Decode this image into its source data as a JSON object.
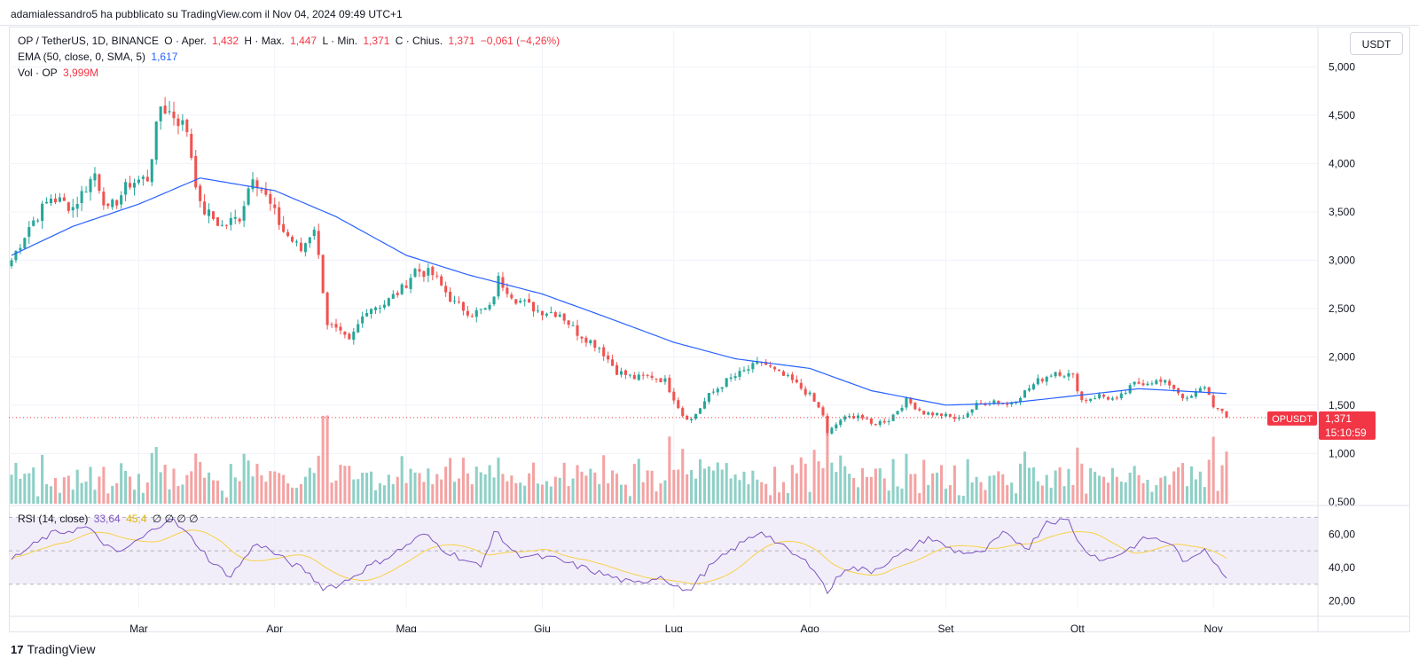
{
  "header": {
    "attribution": "adamialessandro5 ha pubblicato su TradingView.com il Nov 04, 2024 09:49 UTC+1"
  },
  "legend": {
    "symbol": "OP / TetherUS, 1D, BINANCE",
    "open_label": "O · Aper.",
    "open_value": "1,432",
    "high_label": "H · Max.",
    "high_value": "1,447",
    "low_label": "L · Min.",
    "low_value": "1,371",
    "close_label": "C · Chius.",
    "close_value": "1,371",
    "change": "−0,061 (−4,26%)",
    "ema_label": "EMA (50, close, 0, SMA, 5)",
    "ema_value": "1,617",
    "vol_label": "Vol · OP",
    "vol_value": "3,999M",
    "rsi_label": "RSI (14, close)",
    "rsi_value": "33,64",
    "rsi_ma_value": "45,4",
    "rsi_extra": "∅ ∅ ∅ ∅"
  },
  "currency_button": "USDT",
  "price_tag": {
    "symbol": "OPUSDT",
    "price": "1,371",
    "countdown": "15:10:59"
  },
  "footer": {
    "brand": "TradingView",
    "logo": "17"
  },
  "colors": {
    "up": "#26a69a",
    "down": "#ef5350",
    "up_vol": "#8ed0c7",
    "down_vol": "#f4a3a3",
    "ema": "#2962ff",
    "rsi": "#7e57c2",
    "rsi_ma": "#f7d147",
    "rsi_band": "#ede7f6",
    "last_price": "#f23645"
  },
  "chart_data": {
    "type": "candlestick",
    "symbol": "OP / TetherUS",
    "interval": "1D",
    "exchange": "BINANCE",
    "y_ticks": [
      "5,000",
      "4,500",
      "4,000",
      "3,500",
      "3,000",
      "2,500",
      "2,000",
      "1,500",
      "1,000",
      "0,500"
    ],
    "y_tick_values": [
      5.0,
      4.5,
      4.0,
      3.5,
      3.0,
      2.5,
      2.0,
      1.5,
      1.0,
      0.5
    ],
    "ylim": [
      0.48,
      5.38
    ],
    "rsi_ticks": [
      "60,00",
      "40,00",
      "20,00"
    ],
    "rsi_tick_values": [
      60,
      40,
      20
    ],
    "rsi_band": [
      30,
      70
    ],
    "rsi_mid": 50,
    "x_labels": [
      {
        "label": "Mar",
        "date": "2024-03-01"
      },
      {
        "label": "Apr",
        "date": "2024-04-01"
      },
      {
        "label": "Mag",
        "date": "2024-05-01"
      },
      {
        "label": "Giu",
        "date": "2024-06-01"
      },
      {
        "label": "Lug",
        "date": "2024-07-01"
      },
      {
        "label": "Ago",
        "date": "2024-08-01"
      },
      {
        "label": "Set",
        "date": "2024-09-01"
      },
      {
        "label": "Ott",
        "date": "2024-10-01"
      },
      {
        "label": "Nov",
        "date": "2024-11-01"
      }
    ],
    "x_range": [
      "2024-02-01",
      "2024-11-04"
    ],
    "close_anchors": [
      [
        "2024-02-01",
        3.0
      ],
      [
        "2024-02-05",
        3.35
      ],
      [
        "2024-02-10",
        3.65
      ],
      [
        "2024-02-15",
        3.55
      ],
      [
        "2024-02-20",
        3.9
      ],
      [
        "2024-02-23",
        3.5
      ],
      [
        "2024-02-28",
        3.8
      ],
      [
        "2024-03-03",
        3.85
      ],
      [
        "2024-03-06",
        4.6
      ],
      [
        "2024-03-09",
        4.5
      ],
      [
        "2024-03-12",
        4.35
      ],
      [
        "2024-03-15",
        3.55
      ],
      [
        "2024-03-20",
        3.35
      ],
      [
        "2024-03-24",
        3.45
      ],
      [
        "2024-03-27",
        3.9
      ],
      [
        "2024-03-30",
        3.65
      ],
      [
        "2024-04-03",
        3.3
      ],
      [
        "2024-04-07",
        3.1
      ],
      [
        "2024-04-10",
        3.35
      ],
      [
        "2024-04-12",
        2.7
      ],
      [
        "2024-04-13",
        2.35
      ],
      [
        "2024-04-18",
        2.15
      ],
      [
        "2024-04-22",
        2.5
      ],
      [
        "2024-04-26",
        2.55
      ],
      [
        "2024-04-30",
        2.7
      ],
      [
        "2024-05-03",
        2.9
      ],
      [
        "2024-05-07",
        2.85
      ],
      [
        "2024-05-12",
        2.55
      ],
      [
        "2024-05-16",
        2.45
      ],
      [
        "2024-05-20",
        2.5
      ],
      [
        "2024-05-22",
        2.8
      ],
      [
        "2024-05-26",
        2.6
      ],
      [
        "2024-05-31",
        2.48
      ],
      [
        "2024-06-05",
        2.45
      ],
      [
        "2024-06-09",
        2.25
      ],
      [
        "2024-06-14",
        2.1
      ],
      [
        "2024-06-18",
        1.85
      ],
      [
        "2024-06-22",
        1.78
      ],
      [
        "2024-06-26",
        1.8
      ],
      [
        "2024-06-29",
        1.75
      ],
      [
        "2024-07-03",
        1.4
      ],
      [
        "2024-07-05",
        1.35
      ],
      [
        "2024-07-09",
        1.6
      ],
      [
        "2024-07-13",
        1.75
      ],
      [
        "2024-07-17",
        1.85
      ],
      [
        "2024-07-21",
        1.95
      ],
      [
        "2024-07-24",
        1.85
      ],
      [
        "2024-07-28",
        1.75
      ],
      [
        "2024-08-01",
        1.6
      ],
      [
        "2024-08-04",
        1.4
      ],
      [
        "2024-08-05",
        1.2
      ],
      [
        "2024-08-08",
        1.35
      ],
      [
        "2024-08-12",
        1.4
      ],
      [
        "2024-08-15",
        1.3
      ],
      [
        "2024-08-19",
        1.35
      ],
      [
        "2024-08-23",
        1.55
      ],
      [
        "2024-08-27",
        1.42
      ],
      [
        "2024-08-31",
        1.4
      ],
      [
        "2024-09-04",
        1.35
      ],
      [
        "2024-09-08",
        1.5
      ],
      [
        "2024-09-12",
        1.55
      ],
      [
        "2024-09-15",
        1.5
      ],
      [
        "2024-09-18",
        1.6
      ],
      [
        "2024-09-22",
        1.75
      ],
      [
        "2024-09-26",
        1.85
      ],
      [
        "2024-09-30",
        1.8
      ],
      [
        "2024-10-02",
        1.55
      ],
      [
        "2024-10-06",
        1.6
      ],
      [
        "2024-10-10",
        1.55
      ],
      [
        "2024-10-14",
        1.72
      ],
      [
        "2024-10-18",
        1.75
      ],
      [
        "2024-10-22",
        1.72
      ],
      [
        "2024-10-26",
        1.55
      ],
      [
        "2024-10-30",
        1.7
      ],
      [
        "2024-11-01",
        1.5
      ],
      [
        "2024-11-04",
        1.37
      ]
    ],
    "ema_anchors": [
      [
        "2024-02-01",
        3.05
      ],
      [
        "2024-02-15",
        3.35
      ],
      [
        "2024-03-01",
        3.58
      ],
      [
        "2024-03-15",
        3.85
      ],
      [
        "2024-04-01",
        3.72
      ],
      [
        "2024-04-15",
        3.45
      ],
      [
        "2024-05-01",
        3.05
      ],
      [
        "2024-05-15",
        2.85
      ],
      [
        "2024-06-01",
        2.65
      ],
      [
        "2024-06-15",
        2.42
      ],
      [
        "2024-07-01",
        2.15
      ],
      [
        "2024-07-15",
        1.98
      ],
      [
        "2024-08-01",
        1.88
      ],
      [
        "2024-08-15",
        1.65
      ],
      [
        "2024-09-01",
        1.5
      ],
      [
        "2024-09-15",
        1.52
      ],
      [
        "2024-10-01",
        1.6
      ],
      [
        "2024-10-15",
        1.67
      ],
      [
        "2024-11-04",
        1.62
      ]
    ],
    "rsi_anchors": [
      [
        "2024-02-01",
        45
      ],
      [
        "2024-02-10",
        60
      ],
      [
        "2024-02-18",
        64
      ],
      [
        "2024-02-25",
        48
      ],
      [
        "2024-03-02",
        58
      ],
      [
        "2024-03-08",
        70
      ],
      [
        "2024-03-14",
        55
      ],
      [
        "2024-03-18",
        42
      ],
      [
        "2024-03-22",
        35
      ],
      [
        "2024-03-28",
        55
      ],
      [
        "2024-04-03",
        45
      ],
      [
        "2024-04-08",
        38
      ],
      [
        "2024-04-12",
        28
      ],
      [
        "2024-04-16",
        30
      ],
      [
        "2024-04-22",
        40
      ],
      [
        "2024-04-28",
        48
      ],
      [
        "2024-05-05",
        60
      ],
      [
        "2024-05-10",
        50
      ],
      [
        "2024-05-18",
        40
      ],
      [
        "2024-05-21",
        62
      ],
      [
        "2024-05-26",
        48
      ],
      [
        "2024-06-04",
        45
      ],
      [
        "2024-06-10",
        40
      ],
      [
        "2024-06-16",
        35
      ],
      [
        "2024-06-22",
        30
      ],
      [
        "2024-06-28",
        35
      ],
      [
        "2024-07-04",
        25
      ],
      [
        "2024-07-09",
        40
      ],
      [
        "2024-07-15",
        52
      ],
      [
        "2024-07-21",
        62
      ],
      [
        "2024-07-27",
        50
      ],
      [
        "2024-08-02",
        40
      ],
      [
        "2024-08-05",
        25
      ],
      [
        "2024-08-09",
        40
      ],
      [
        "2024-08-15",
        38
      ],
      [
        "2024-08-22",
        48
      ],
      [
        "2024-08-28",
        58
      ],
      [
        "2024-09-03",
        50
      ],
      [
        "2024-09-09",
        48
      ],
      [
        "2024-09-14",
        60
      ],
      [
        "2024-09-20",
        52
      ],
      [
        "2024-09-24",
        68
      ],
      [
        "2024-09-29",
        68
      ],
      [
        "2024-10-02",
        52
      ],
      [
        "2024-10-07",
        44
      ],
      [
        "2024-10-12",
        50
      ],
      [
        "2024-10-17",
        58
      ],
      [
        "2024-10-22",
        55
      ],
      [
        "2024-10-26",
        42
      ],
      [
        "2024-10-30",
        52
      ],
      [
        "2024-11-04",
        34
      ]
    ],
    "last_price": 1.371,
    "last_rsi": 33.64,
    "last_rsi_ma": 45.4
  }
}
